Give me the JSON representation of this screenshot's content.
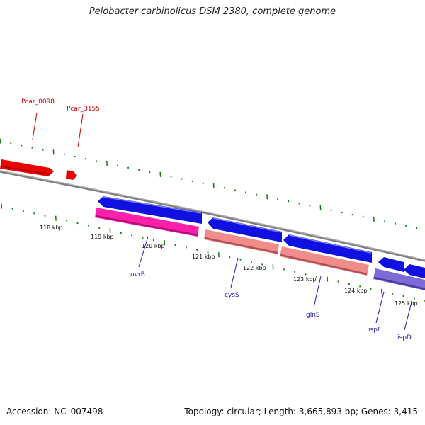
{
  "title": "Pelobacter carbinolicus DSM 2380, complete genome",
  "accession": "Accession: NC_007498",
  "summary": "Topology: circular; Length: 3,665,893 bp; Genes: 3,415",
  "colors": {
    "backbone": "#808080",
    "forward_cds": "#1010e0",
    "reverse_cds": "#f08c8c",
    "reverse_cds_magenta": "#ff1fa8",
    "purple_cds": "#7c6ad6",
    "red_cds": "#ee0000",
    "ticks": "#157a15",
    "label_blue": "#1a1ab0",
    "label_red": "#cc0000"
  },
  "kbp_labels": [
    "118 kbp",
    "119 kbp",
    "120 kbp",
    "121 kbp",
    "122 kbp",
    "123 kbp",
    "124 kbp",
    "125 kbp"
  ],
  "gene_labels_blue": [
    "uvrB",
    "cysS",
    "glnS",
    "ispF",
    "ispD"
  ],
  "gene_labels_red": [
    "Pcar_0098",
    "Pcar_3155"
  ]
}
